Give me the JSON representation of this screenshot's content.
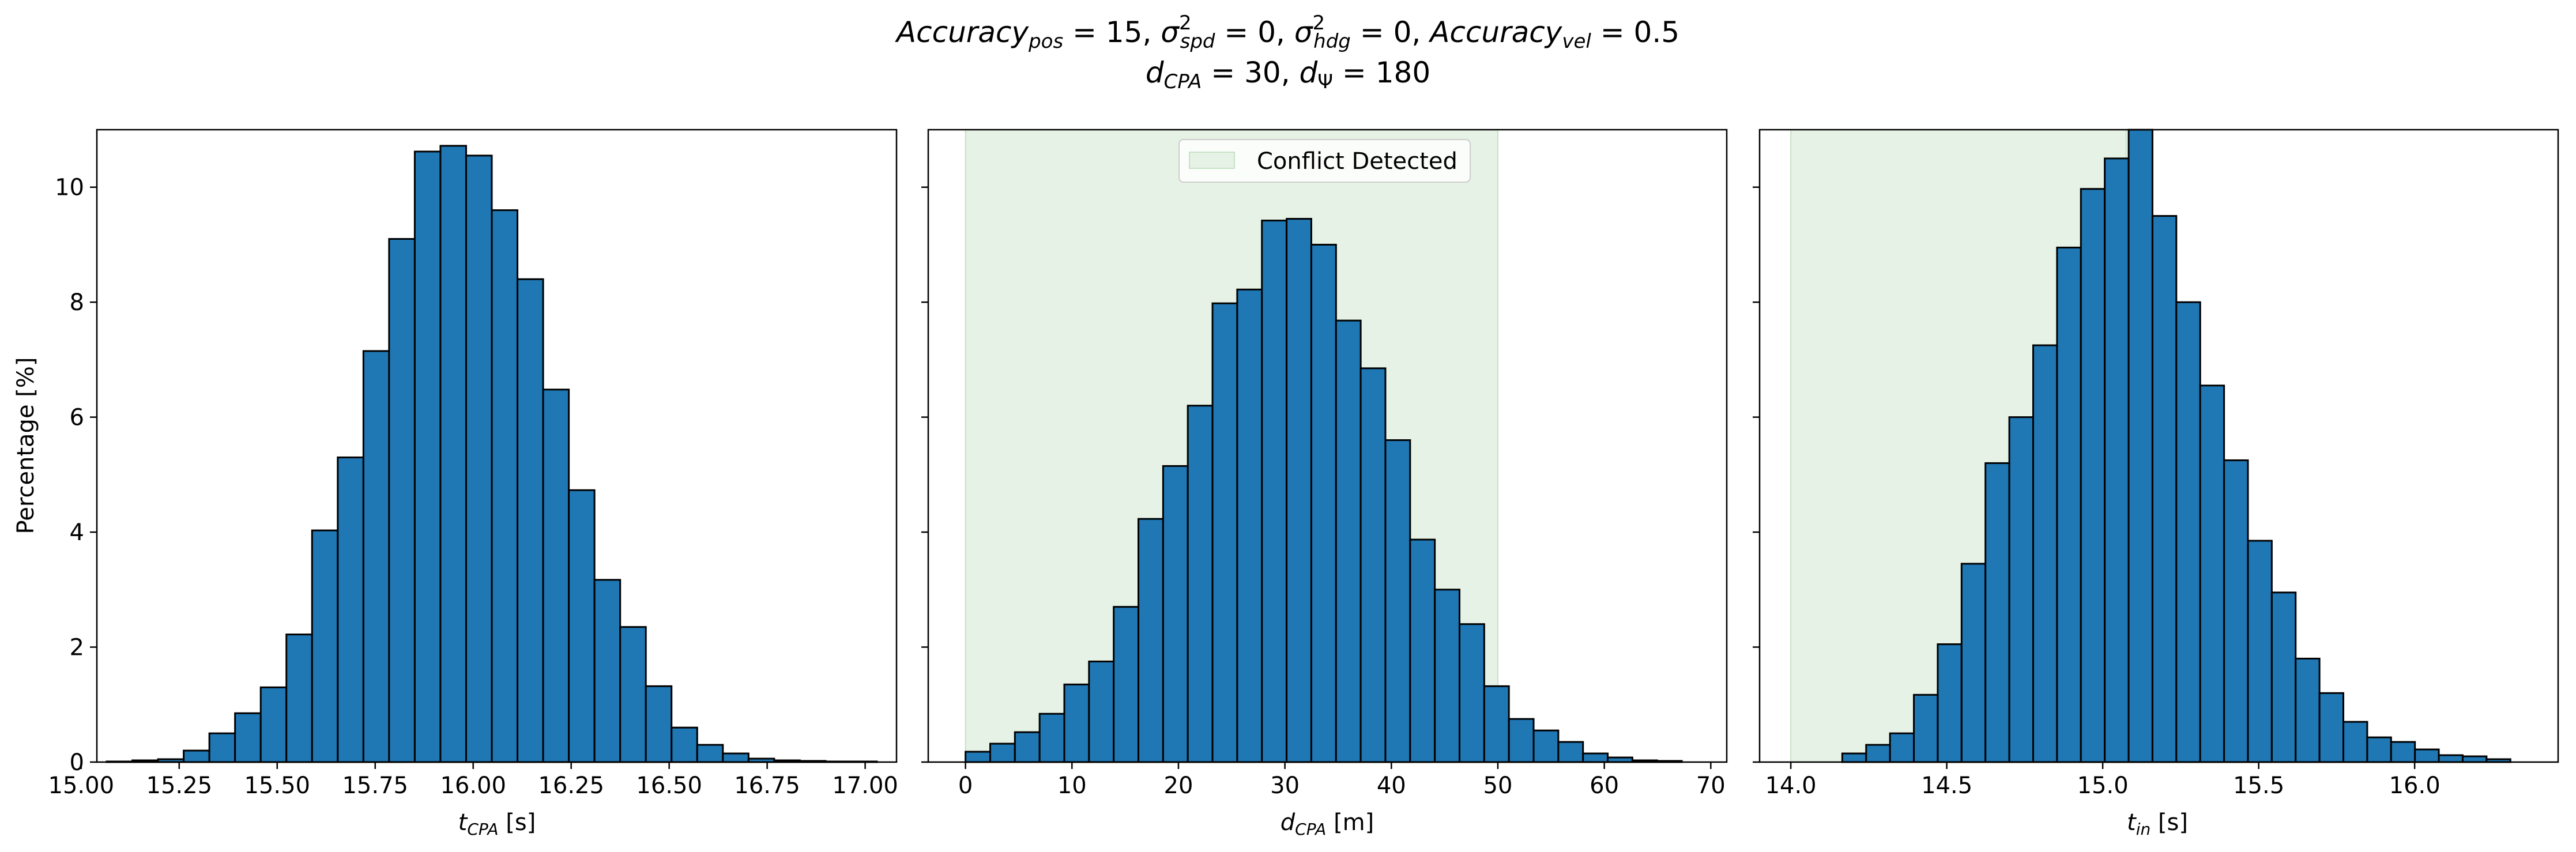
{
  "title": {
    "line1": {
      "acc_pos_sub": "pos",
      "acc_pos_value": "15",
      "sig_spd_sub": "spd",
      "sig_spd_value": "0",
      "sig_hdg_sub": "hdg",
      "sig_hdg_value": "0",
      "acc_vel_sub": "vel",
      "acc_vel_value": "0.5"
    },
    "line2": {
      "dcpa_sub": "CPA",
      "dcpa_value": "30",
      "dpsi_sub": "Ψ",
      "dpsi_value": "180"
    }
  },
  "ylabel": "Percentage [%]",
  "colors": {
    "bar_fill": "#1f77b4",
    "bar_edge": "#000000",
    "shade": "#e5f2e5",
    "shade_edge": "#c6e2c6"
  },
  "legend": {
    "label": "Conflict Detected",
    "position": "upper center (middle panel)"
  },
  "chart_data": [
    {
      "type": "bar",
      "xlabel": {
        "var": "t",
        "sub": "CPA",
        "unit": "[s]"
      },
      "xlim": [
        15.04,
        17.08
      ],
      "ylim": [
        0,
        11
      ],
      "xticks": [
        "15.00",
        "15.25",
        "15.50",
        "15.75",
        "16.00",
        "16.25",
        "16.50",
        "16.75",
        "17.00"
      ],
      "xtick_values": [
        15.0,
        15.25,
        15.5,
        15.75,
        16.0,
        16.25,
        16.5,
        16.75,
        17.0
      ],
      "yticks": [
        "0",
        "2",
        "4",
        "6",
        "8",
        "10"
      ],
      "ytick_values": [
        0,
        2,
        4,
        6,
        8,
        10
      ],
      "bin_start": 15.065,
      "bin_width": 0.0655,
      "values": [
        0.01,
        0.03,
        0.05,
        0.2,
        0.5,
        0.85,
        1.3,
        2.22,
        4.03,
        5.3,
        7.15,
        9.1,
        10.62,
        10.72,
        10.55,
        9.6,
        8.4,
        6.48,
        4.73,
        3.17,
        2.35,
        1.32,
        0.6,
        0.3,
        0.15,
        0.06,
        0.03,
        0.02,
        0.01,
        0.01
      ],
      "grid": false
    },
    {
      "type": "bar",
      "xlabel": {
        "var": "d",
        "sub": "CPA",
        "unit": "[m]"
      },
      "xlim": [
        -3.5,
        71.5
      ],
      "ylim": [
        0,
        11
      ],
      "xticks": [
        "0",
        "10",
        "20",
        "30",
        "40",
        "50",
        "60",
        "70"
      ],
      "xtick_values": [
        0,
        10,
        20,
        30,
        40,
        50,
        60,
        70
      ],
      "yticks": [
        "0",
        "2",
        "4",
        "6",
        "8",
        "10"
      ],
      "ytick_values": [
        0,
        2,
        4,
        6,
        8,
        10
      ],
      "bin_start": 0,
      "bin_width": 2.32,
      "values": [
        0.18,
        0.32,
        0.52,
        0.84,
        1.35,
        1.75,
        2.7,
        4.23,
        5.15,
        6.2,
        7.98,
        8.22,
        9.42,
        9.45,
        9.0,
        7.68,
        6.85,
        5.6,
        3.87,
        3.0,
        2.4,
        1.32,
        0.75,
        0.55,
        0.35,
        0.15,
        0.08,
        0.03,
        0.02
      ],
      "shade_range": [
        0,
        50
      ],
      "grid": false
    },
    {
      "type": "bar",
      "xlabel": {
        "var": "t",
        "sub": "in",
        "unit": "[s]"
      },
      "xlim": [
        13.9,
        16.46
      ],
      "ylim": [
        0,
        11
      ],
      "xticks": [
        "14.0",
        "14.5",
        "15.0",
        "15.5",
        "16.0"
      ],
      "xtick_values": [
        14.0,
        14.5,
        15.0,
        15.5,
        16.0
      ],
      "yticks": [
        "0",
        "2",
        "4",
        "6",
        "8",
        "10"
      ],
      "ytick_values": [
        0,
        2,
        4,
        6,
        8,
        10
      ],
      "bin_start": 14.165,
      "bin_width": 0.0765,
      "values": [
        0.15,
        0.3,
        0.5,
        1.17,
        2.05,
        3.45,
        5.2,
        6.0,
        7.25,
        8.95,
        9.97,
        10.5,
        11.05,
        9.5,
        8.0,
        6.55,
        5.25,
        3.85,
        2.95,
        1.8,
        1.2,
        0.7,
        0.43,
        0.35,
        0.22,
        0.12,
        0.1,
        0.05
      ],
      "shade_range": [
        14.0,
        15.075
      ],
      "grid": false
    }
  ]
}
